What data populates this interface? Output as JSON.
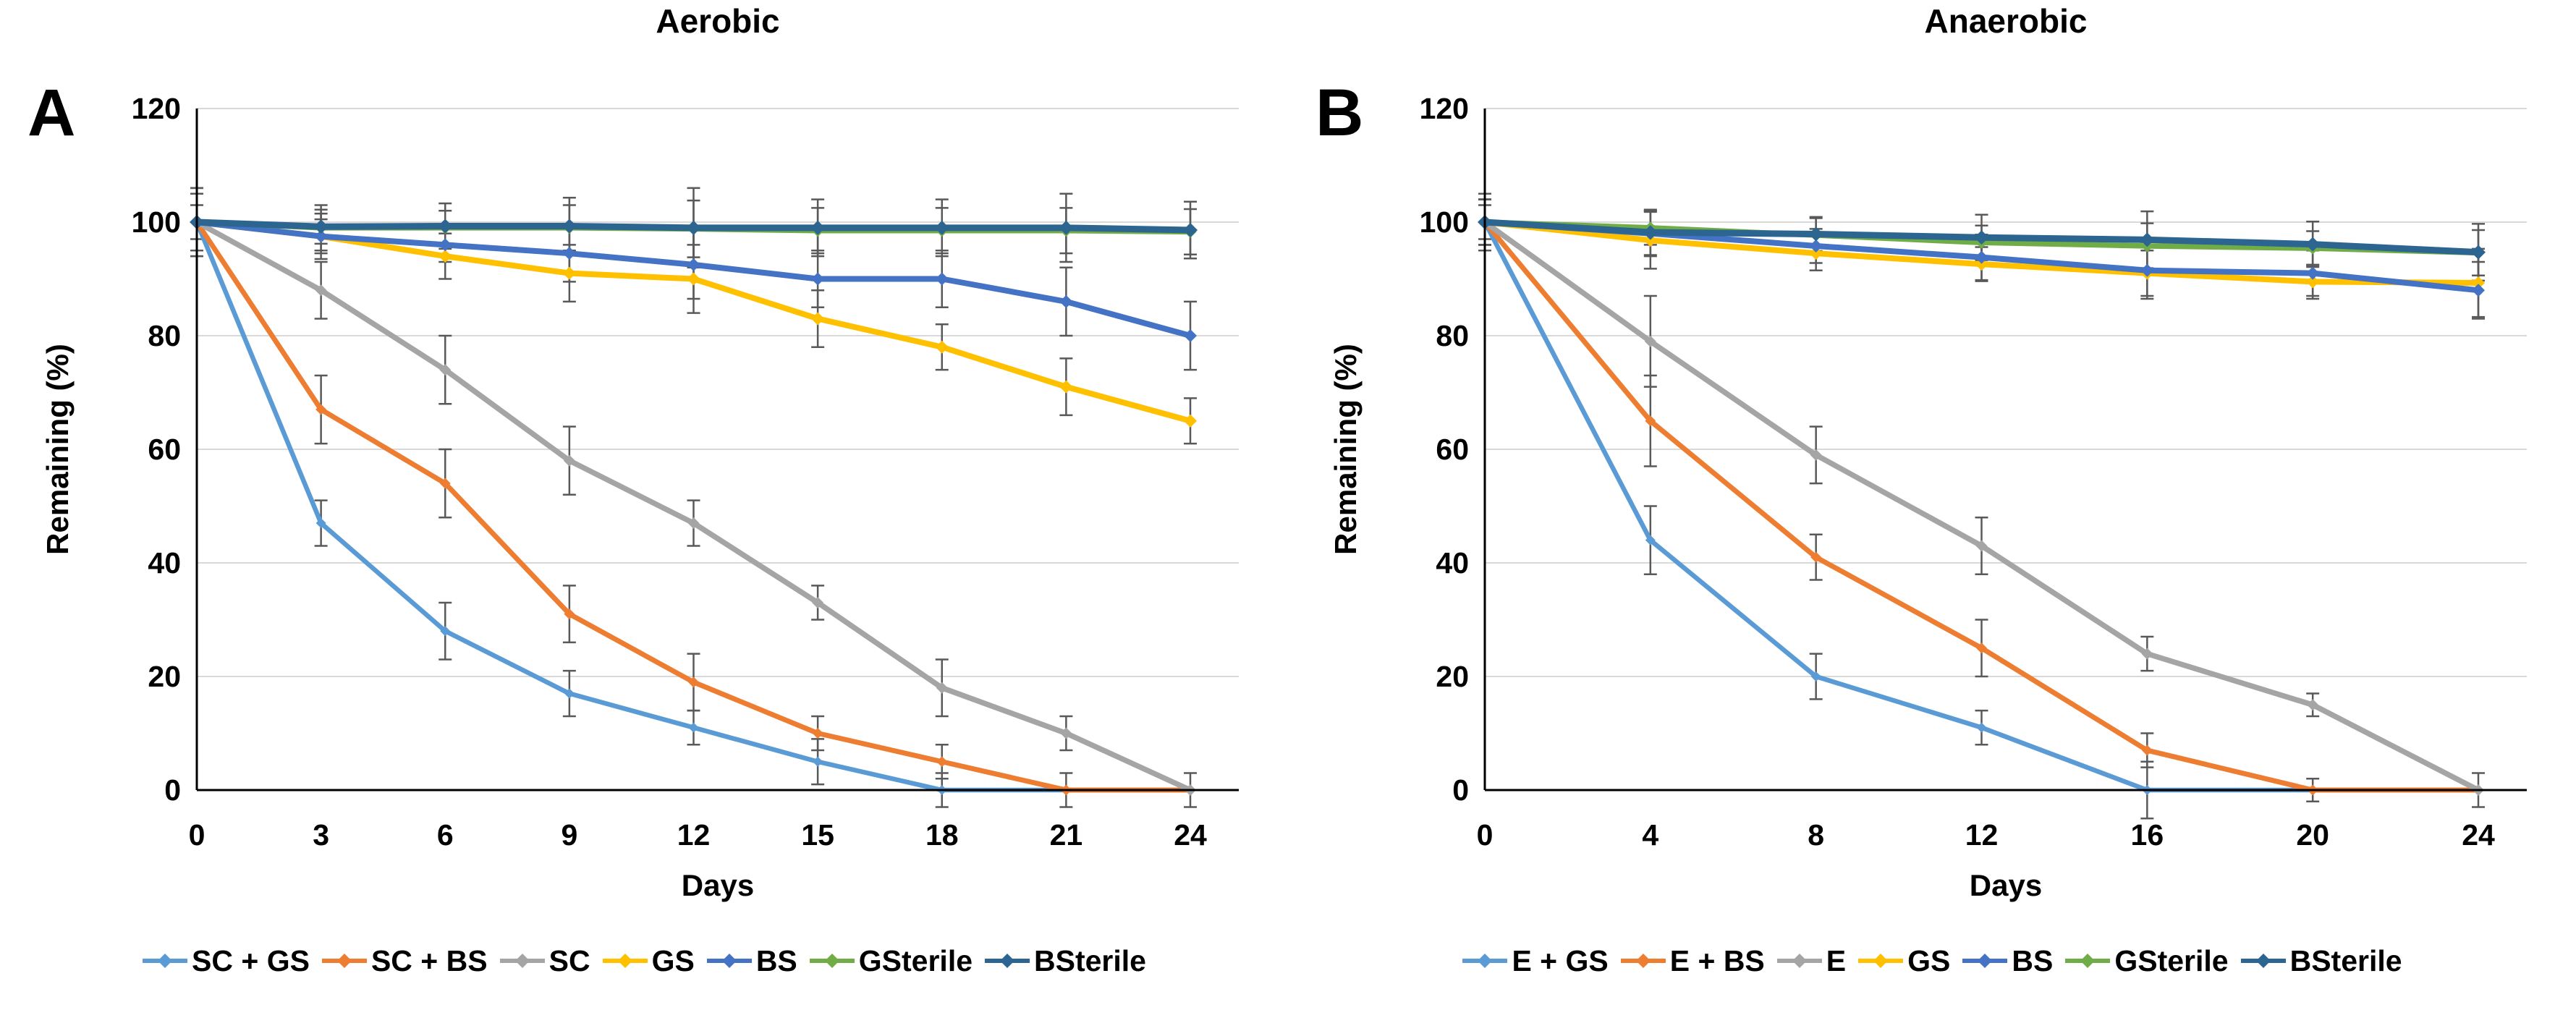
{
  "figure_background": "#FFFFFF",
  "styles": {
    "grid_color": "#D9D9D9",
    "axis_color": "#000000",
    "error_bar_color": "#595959"
  },
  "chart_data": [
    {
      "type": "line",
      "panel_label": "A",
      "title": "Aerobic",
      "xlabel": "Days",
      "ylabel": "Remaining (%)",
      "x": [
        0,
        3,
        6,
        9,
        12,
        15,
        18,
        21,
        24
      ],
      "ylim": [
        0,
        120
      ],
      "yticks": [
        0,
        20,
        40,
        60,
        80,
        100,
        120
      ],
      "grid": "horizontal",
      "legend_position": "bottom",
      "error_bars": true,
      "series": [
        {
          "name": "SC + GS",
          "color": "#5B9BD5",
          "values": [
            100,
            47,
            28,
            17,
            11,
            5,
            0,
            0,
            0
          ],
          "errors": [
            5,
            4,
            5,
            4,
            3,
            4,
            3,
            0,
            0
          ]
        },
        {
          "name": "SC + BS",
          "color": "#ED7D31",
          "values": [
            100,
            67,
            54,
            31,
            19,
            10,
            5,
            0,
            0
          ],
          "errors": [
            5,
            6,
            6,
            5,
            5,
            3,
            3,
            3,
            0
          ]
        },
        {
          "name": "SC",
          "color": "#A5A5A5",
          "values": [
            100,
            88,
            74,
            58,
            47,
            33,
            18,
            10,
            0
          ],
          "errors": [
            5,
            5,
            6,
            6,
            4,
            3,
            5,
            3,
            3
          ]
        },
        {
          "name": "GS",
          "color": "#FFC000",
          "values": [
            100,
            97.5,
            94,
            91,
            90,
            83,
            78,
            71,
            65
          ],
          "errors": [
            6,
            3,
            4,
            5,
            6,
            5,
            4,
            5,
            4
          ]
        },
        {
          "name": "BS",
          "color": "#4472C4",
          "values": [
            100,
            97.5,
            96,
            94.5,
            92.5,
            90,
            90,
            86,
            80
          ],
          "errors": [
            6,
            4,
            3,
            5,
            6,
            5,
            5,
            6,
            6
          ]
        },
        {
          "name": "GSterile",
          "color": "#70AD47",
          "values": [
            100,
            99,
            99,
            99,
            98.8,
            98.5,
            98.5,
            98.5,
            98.3
          ],
          "errors": [
            3,
            4,
            3,
            4,
            5,
            4,
            4,
            4,
            4
          ]
        },
        {
          "name": "BSterile",
          "color": "#2D6591",
          "values": [
            100,
            99.2,
            99.3,
            99.3,
            99,
            99,
            99,
            99,
            98.6
          ],
          "errors": [
            5,
            3,
            4,
            5,
            7,
            5,
            5,
            6,
            5
          ]
        }
      ]
    },
    {
      "type": "line",
      "panel_label": "B",
      "title": "Anaerobic",
      "xlabel": "Days",
      "ylabel": "Remaining (%)",
      "x": [
        0,
        4,
        8,
        12,
        16,
        20,
        24
      ],
      "ylim": [
        0,
        120
      ],
      "yticks": [
        0,
        20,
        40,
        60,
        80,
        100,
        120
      ],
      "grid": "horizontal",
      "legend_position": "bottom",
      "error_bars": true,
      "series": [
        {
          "name": "E + GS",
          "color": "#5B9BD5",
          "values": [
            100,
            44,
            20,
            11,
            0,
            0,
            0
          ],
          "errors": [
            4,
            6,
            4,
            3,
            5,
            0,
            0
          ]
        },
        {
          "name": "E + BS",
          "color": "#ED7D31",
          "values": [
            100,
            65,
            41,
            25,
            7,
            0,
            0
          ],
          "errors": [
            5,
            8,
            4,
            5,
            3,
            2,
            0
          ]
        },
        {
          "name": "E",
          "color": "#A5A5A5",
          "values": [
            100,
            79,
            59,
            43,
            24,
            15,
            0
          ],
          "errors": [
            4,
            8,
            5,
            5,
            3,
            2,
            3
          ]
        },
        {
          "name": "GS",
          "color": "#FFC000",
          "values": [
            100,
            96.8,
            94.5,
            92.6,
            91,
            89.5,
            89.3
          ],
          "errors": [
            4,
            5,
            3,
            3,
            4,
            3,
            6
          ]
        },
        {
          "name": "BS",
          "color": "#4472C4",
          "values": [
            100,
            98,
            95.8,
            93.8,
            91.5,
            91,
            88
          ],
          "errors": [
            4,
            4,
            3,
            4,
            5,
            4,
            5
          ]
        },
        {
          "name": "GSterile",
          "color": "#70AD47",
          "values": [
            100,
            99,
            97.7,
            96.4,
            95.8,
            95.4,
            94.6
          ],
          "errors": [
            3,
            3,
            3,
            3,
            4,
            3,
            4
          ]
        },
        {
          "name": "BSterile",
          "color": "#2D6591",
          "values": [
            100,
            98.2,
            97.9,
            97.3,
            96.9,
            96.1,
            94.7
          ],
          "errors": [
            4,
            4,
            3,
            4,
            5,
            4,
            5
          ]
        }
      ]
    }
  ]
}
